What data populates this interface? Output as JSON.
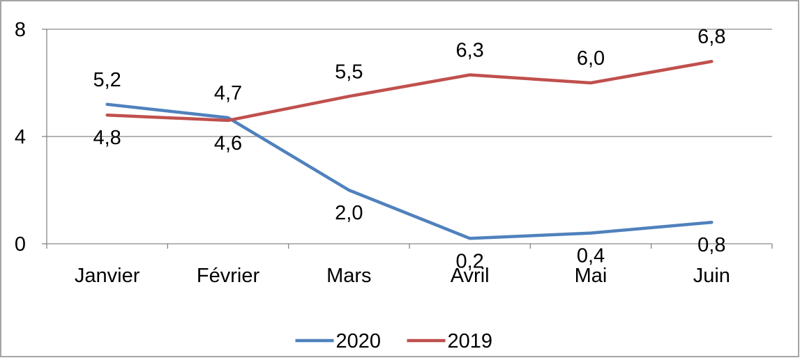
{
  "chart_data": {
    "type": "line",
    "title": "",
    "xlabel": "",
    "ylabel": "",
    "categories": [
      "Janvier",
      "Février",
      "Mars",
      "Avril",
      "Mai",
      "Juin"
    ],
    "ylim": [
      0,
      8
    ],
    "yticks": [
      "0",
      "4",
      "8"
    ],
    "grid": true,
    "legend_position": "bottom",
    "series": [
      {
        "name": "2020",
        "color": "#4F81BD",
        "values": [
          5.2,
          4.7,
          2.0,
          0.2,
          0.4,
          0.8
        ],
        "labels": [
          "5,2",
          "4,7",
          "2,0",
          "0,2",
          "0,4",
          "0,8"
        ]
      },
      {
        "name": "2019",
        "color": "#C0504D",
        "values": [
          4.8,
          4.6,
          5.5,
          6.3,
          6.0,
          6.8
        ],
        "labels": [
          "4,8",
          "4,6",
          "5,5",
          "6,3",
          "6,0",
          "6,8"
        ]
      }
    ]
  }
}
